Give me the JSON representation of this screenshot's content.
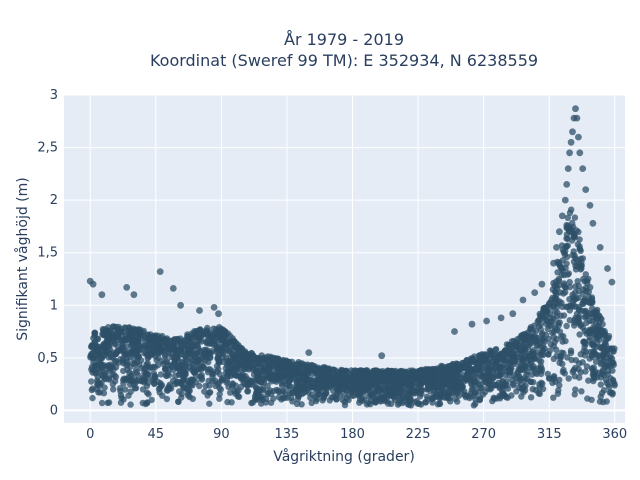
{
  "chart_data": {
    "type": "scatter",
    "title": "År 1979 - 2019",
    "subtitle": "Koordinat (Sweref 99 TM): E 352934, N 6238559",
    "xlabel": "Vågriktning (grader)",
    "ylabel": "Signifikant våghöjd (m)",
    "xlim": [
      -18,
      367
    ],
    "ylim": [
      -0.12,
      3.0
    ],
    "x_ticks": [
      0,
      45,
      90,
      135,
      180,
      225,
      270,
      315,
      360
    ],
    "x_tick_labels": [
      "0",
      "45",
      "90",
      "135",
      "180",
      "225",
      "270",
      "315",
      "360"
    ],
    "y_ticks": [
      0,
      0.5,
      1,
      1.5,
      2,
      2.5,
      3
    ],
    "y_tick_labels": [
      "0",
      "0,5",
      "1",
      "1,5",
      "2",
      "2,5",
      "3"
    ],
    "grid": true,
    "legend": "none",
    "marker_color": "#2e5068",
    "plot_background": "#e5ecf6",
    "envelope": {
      "direction": [
        0,
        15,
        30,
        45,
        60,
        75,
        90,
        105,
        120,
        135,
        150,
        165,
        180,
        195,
        210,
        225,
        240,
        255,
        270,
        285,
        300,
        315,
        325,
        330,
        335,
        345,
        360
      ],
      "dense_max_height": [
        0.75,
        0.8,
        0.8,
        0.72,
        0.68,
        0.78,
        0.8,
        0.58,
        0.52,
        0.48,
        0.44,
        0.4,
        0.38,
        0.38,
        0.38,
        0.38,
        0.42,
        0.46,
        0.55,
        0.62,
        0.75,
        1.05,
        1.7,
        1.95,
        1.75,
        1.05,
        0.6
      ]
    },
    "outlier_points": {
      "x": [
        0,
        2,
        8,
        25,
        30,
        48,
        57,
        62,
        75,
        85,
        88,
        150,
        200,
        250,
        262,
        272,
        282,
        290,
        297,
        305,
        310,
        318,
        320,
        322,
        324,
        326,
        327,
        328,
        329,
        330,
        331,
        332,
        333,
        334,
        335,
        336,
        338,
        340,
        343,
        345,
        350,
        355,
        358
      ],
      "y": [
        1.23,
        1.2,
        1.1,
        1.17,
        1.1,
        1.32,
        1.16,
        1.0,
        0.95,
        0.98,
        0.92,
        0.55,
        0.52,
        0.75,
        0.82,
        0.85,
        0.88,
        0.92,
        1.05,
        1.12,
        1.2,
        1.4,
        1.55,
        1.7,
        1.85,
        2.0,
        2.15,
        2.3,
        2.45,
        2.55,
        2.65,
        2.78,
        2.87,
        2.78,
        2.6,
        2.45,
        2.3,
        2.1,
        1.95,
        1.78,
        1.55,
        1.35,
        1.22
      ]
    }
  }
}
